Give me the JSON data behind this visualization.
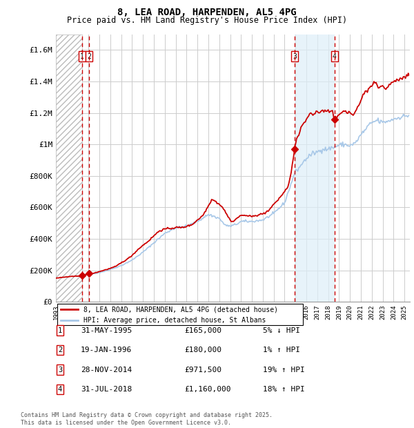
{
  "title1": "8, LEA ROAD, HARPENDEN, AL5 4PG",
  "title2": "Price paid vs. HM Land Registry's House Price Index (HPI)",
  "ylabel_ticks": [
    "£0",
    "£200K",
    "£400K",
    "£600K",
    "£800K",
    "£1M",
    "£1.2M",
    "£1.4M",
    "£1.6M"
  ],
  "ytick_values": [
    0,
    200000,
    400000,
    600000,
    800000,
    1000000,
    1200000,
    1400000,
    1600000
  ],
  "ylim": [
    0,
    1700000
  ],
  "xlim_start": 1993.0,
  "xlim_end": 2025.5,
  "hpi_color": "#a8c8e8",
  "price_color": "#cc0000",
  "transaction_markers": [
    {
      "label": "1",
      "year": 1995.42,
      "price": 165000
    },
    {
      "label": "2",
      "year": 1996.05,
      "price": 180000
    },
    {
      "label": "3",
      "year": 2014.92,
      "price": 971500
    },
    {
      "label": "4",
      "year": 2018.58,
      "price": 1160000
    }
  ],
  "legend_line1": "8, LEA ROAD, HARPENDEN, AL5 4PG (detached house)",
  "legend_line2": "HPI: Average price, detached house, St Albans",
  "table_rows": [
    {
      "num": "1",
      "date": "31-MAY-1995",
      "price": "£165,000",
      "hpi": "5% ↓ HPI"
    },
    {
      "num": "2",
      "date": "19-JAN-1996",
      "price": "£180,000",
      "hpi": "1% ↑ HPI"
    },
    {
      "num": "3",
      "date": "28-NOV-2014",
      "price": "£971,500",
      "hpi": "19% ↑ HPI"
    },
    {
      "num": "4",
      "date": "31-JUL-2018",
      "price": "£1,160,000",
      "hpi": "18% ↑ HPI"
    }
  ],
  "footnote": "Contains HM Land Registry data © Crown copyright and database right 2025.\nThis data is licensed under the Open Government Licence v3.0.",
  "hatch_region_end": 1995.42,
  "shade_region_2_start": 2014.92,
  "shade_region_2_end": 2018.58
}
